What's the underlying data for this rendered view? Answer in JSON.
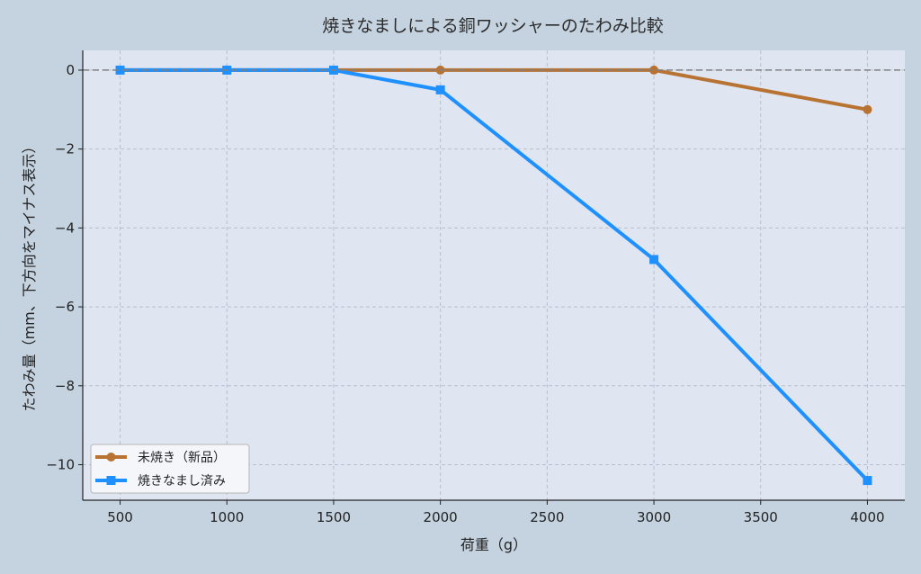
{
  "chart_data": {
    "type": "line",
    "title": "焼きなましによる銅ワッシャーのたわみ比較",
    "xlabel": "荷重（g）",
    "ylabel": "たわみ量（mm、下方向をマイナス表示）",
    "x": [
      500,
      1000,
      1500,
      2000,
      3000,
      4000
    ],
    "series": [
      {
        "name": "未焼き（新品）",
        "color": "#b87333",
        "marker": "circle",
        "values": [
          0,
          0,
          0,
          0,
          0,
          -1.0
        ]
      },
      {
        "name": "焼きなまし済み",
        "color": "#1e90ff",
        "marker": "square",
        "values": [
          0,
          0,
          0,
          -0.5,
          -4.8,
          -10.4
        ]
      }
    ],
    "xticks": [
      500,
      1000,
      1500,
      2000,
      2500,
      3000,
      3500,
      4000
    ],
    "yticks": [
      0,
      -2,
      -4,
      -6,
      -8,
      -10
    ],
    "ytick_labels": [
      "0",
      "−2",
      "−4",
      "−6",
      "−8",
      "−10"
    ],
    "xlim": [
      325,
      4175
    ],
    "ylim": [
      -10.9,
      0.5
    ],
    "grid": true,
    "reference_line": {
      "y": 0,
      "style": "dashed",
      "color": "#808080"
    },
    "legend_position": "lower left"
  }
}
